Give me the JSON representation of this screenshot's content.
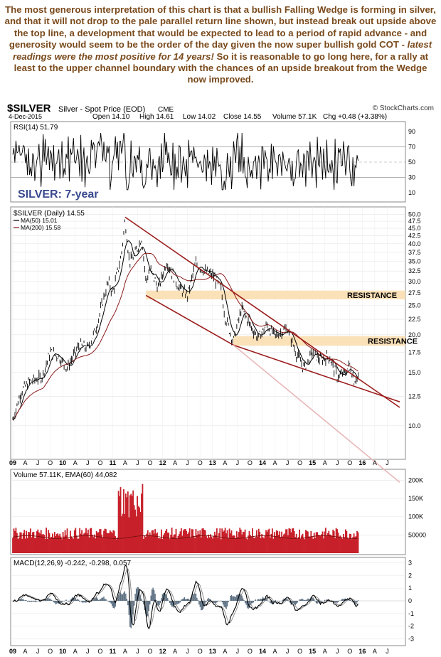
{
  "commentary": {
    "part1": "The most generous interpretation of this chart is that a bullish Falling Wedge is forming in silver, and that it will not drop to the pale parallel return line shown, but instead break out upside above the top line, a development that would be expected to lead to a period of rapid advance - and generosity would seem to be the order of the day given the now super bullish gold COT - ",
    "italic": "latest readings were the most positive for 14 years!",
    "part2": " So it is reasonable to go long here, for a rally at least to the upper channel boundary with the chances of an upside breakout from the Wedge now improved."
  },
  "header": {
    "symbol": "$SILVER",
    "name": "Silver - Spot Price (EOD)",
    "exchange": "CME",
    "watermark": "© StockCharts.com",
    "date": "4-Dec-2015",
    "open": "Open 14.10",
    "high": "High 14.61",
    "low": "Low 14.02",
    "close": "Close 14.55",
    "volume": "Volume 57.1K",
    "change": "Chg +0.48 (+3.38%)"
  },
  "chart_data": {
    "type": "line",
    "title": "SILVER: 7-year",
    "x_axis_labels": [
      "09",
      "A",
      "J",
      "O",
      "10",
      "A",
      "J",
      "O",
      "11",
      "A",
      "J",
      "O",
      "12",
      "A",
      "J",
      "O",
      "13",
      "A",
      "J",
      "O",
      "14",
      "A",
      "J",
      "O",
      "15",
      "A",
      "J",
      "O",
      "16",
      "A",
      "J"
    ],
    "rsi": {
      "legend": "RSI(14) 51.79",
      "ticks": [
        "90",
        "70",
        "50",
        "30",
        "10"
      ],
      "last": 51.79,
      "levels": [
        70,
        30
      ],
      "ylim": [
        0,
        100
      ]
    },
    "price": {
      "legend": "$SILVER (Daily) 14.55",
      "ma50_legend": "MA(50) 15.01",
      "ma200_legend": "MA(200) 15.58",
      "ticks": [
        "50.0",
        "47.5",
        "45.0",
        "42.5",
        "40.0",
        "37.5",
        "35.0",
        "32.5",
        "30.0",
        "27.5",
        "25.0",
        "22.5",
        "20.0",
        "17.5",
        "15.0",
        "12.5",
        "10.0"
      ],
      "scale": "log",
      "ylim": [
        8.0,
        51.0
      ],
      "series_path": [
        [
          "2009-01",
          10.5
        ],
        [
          "2009-03",
          13.0
        ],
        [
          "2009-05",
          14.0
        ],
        [
          "2009-08",
          14.5
        ],
        [
          "2009-10",
          17.5
        ],
        [
          "2009-12",
          17.0
        ],
        [
          "2010-02",
          15.5
        ],
        [
          "2010-05",
          18.5
        ],
        [
          "2010-07",
          18.0
        ],
        [
          "2010-09",
          21.0
        ],
        [
          "2010-11",
          27.0
        ],
        [
          "2010-12",
          30.0
        ],
        [
          "2011-01",
          27.5
        ],
        [
          "2011-03",
          36.0
        ],
        [
          "2011-04",
          48.0
        ],
        [
          "2011-05",
          35.0
        ],
        [
          "2011-06",
          36.0
        ],
        [
          "2011-08",
          42.0
        ],
        [
          "2011-09",
          30.0
        ],
        [
          "2011-10",
          33.0
        ],
        [
          "2011-12",
          28.5
        ],
        [
          "2012-02",
          35.0
        ],
        [
          "2012-05",
          28.5
        ],
        [
          "2012-07",
          27.0
        ],
        [
          "2012-09",
          34.5
        ],
        [
          "2012-11",
          32.5
        ],
        [
          "2013-01",
          31.5
        ],
        [
          "2013-03",
          28.5
        ],
        [
          "2013-04",
          23.0
        ],
        [
          "2013-06",
          19.0
        ],
        [
          "2013-08",
          24.5
        ],
        [
          "2013-10",
          21.5
        ],
        [
          "2013-12",
          19.5
        ],
        [
          "2014-02",
          21.5
        ],
        [
          "2014-04",
          19.8
        ],
        [
          "2014-07",
          21.0
        ],
        [
          "2014-09",
          17.5
        ],
        [
          "2014-11",
          15.5
        ],
        [
          "2015-01",
          17.5
        ],
        [
          "2015-03",
          16.5
        ],
        [
          "2015-05",
          17.0
        ],
        [
          "2015-07",
          14.5
        ],
        [
          "2015-09",
          15.0
        ],
        [
          "2015-10",
          16.0
        ],
        [
          "2015-11",
          14.1
        ],
        [
          "2015-12",
          14.55
        ]
      ],
      "ma50_last": 15.01,
      "ma200_last": 15.58,
      "trendlines": [
        {
          "name": "upper-wedge-line",
          "from": [
            "2011-04",
            49.0
          ],
          "to": [
            "2016-10",
            11.5
          ]
        },
        {
          "name": "lower-wedge-line",
          "from": [
            "2013-06",
            18.5
          ],
          "to": [
            "2016-10",
            12.0
          ]
        },
        {
          "name": "lower-channel-line",
          "from": [
            "2011-09",
            27.0
          ],
          "to": [
            "2013-06",
            18.5
          ]
        },
        {
          "name": "return-line",
          "from": [
            "2013-06",
            18.5
          ],
          "to": [
            "2016-10",
            6.5
          ]
        }
      ],
      "resistance_bands": [
        {
          "label": "RESISTANCE",
          "low": 26.2,
          "high": 28.0,
          "from": "2011-09"
        },
        {
          "label": "RESISTANCE",
          "low": 18.4,
          "high": 19.8,
          "from": "2013-06"
        }
      ]
    },
    "volume": {
      "legend": "Volume 57.11K, EMA(60) 44,082",
      "ticks": [
        "200K",
        "150K",
        "100K",
        "50000"
      ],
      "ylim": [
        0,
        220000
      ],
      "last": 57110,
      "ema60_last": 44082
    },
    "macd": {
      "legend": "MACD(12,26,9) -0.242, -0.298, 0.057",
      "ticks": [
        "3",
        "2",
        "1",
        "0",
        "-1",
        "-2",
        "-3"
      ],
      "ylim": [
        -3.2,
        3.2
      ],
      "values": [
        -0.242,
        -0.298,
        0.057
      ]
    },
    "colors": {
      "price": "#000000",
      "ma50": "#000000",
      "ma200": "#8b1a1a",
      "trend": "#9b1c1c",
      "return_line": "#e8b8b8",
      "resistance": "#fbe1b8",
      "volume": "#c8202a",
      "macd_hist": "#5a6e80",
      "title": "#3a4a90"
    }
  }
}
